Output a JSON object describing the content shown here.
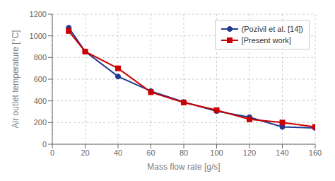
{
  "chart_data": {
    "type": "line",
    "x": [
      10,
      20,
      40,
      60,
      80,
      100,
      120,
      140,
      160
    ],
    "series": [
      {
        "name": "(Pozivil et al. [14])",
        "color": "#1f3a93",
        "marker": "circle",
        "values": [
          1075,
          855,
          625,
          490,
          390,
          305,
          250,
          160,
          150
        ]
      },
      {
        "name": "[Present work]",
        "color": "#cc0000",
        "marker": "square",
        "values": [
          1045,
          855,
          700,
          480,
          385,
          315,
          230,
          200,
          160
        ]
      }
    ],
    "xlabel": "Mass flow rate [g/s]",
    "ylabel": "Air outlet temperature [°C]",
    "xlim": [
      0,
      160
    ],
    "ylim": [
      0,
      1200
    ],
    "xticks": [
      0,
      20,
      40,
      60,
      80,
      100,
      120,
      140,
      160
    ],
    "yticks": [
      0,
      200,
      400,
      600,
      800,
      1000,
      1200
    ],
    "grid": true,
    "legend": "upper right"
  }
}
